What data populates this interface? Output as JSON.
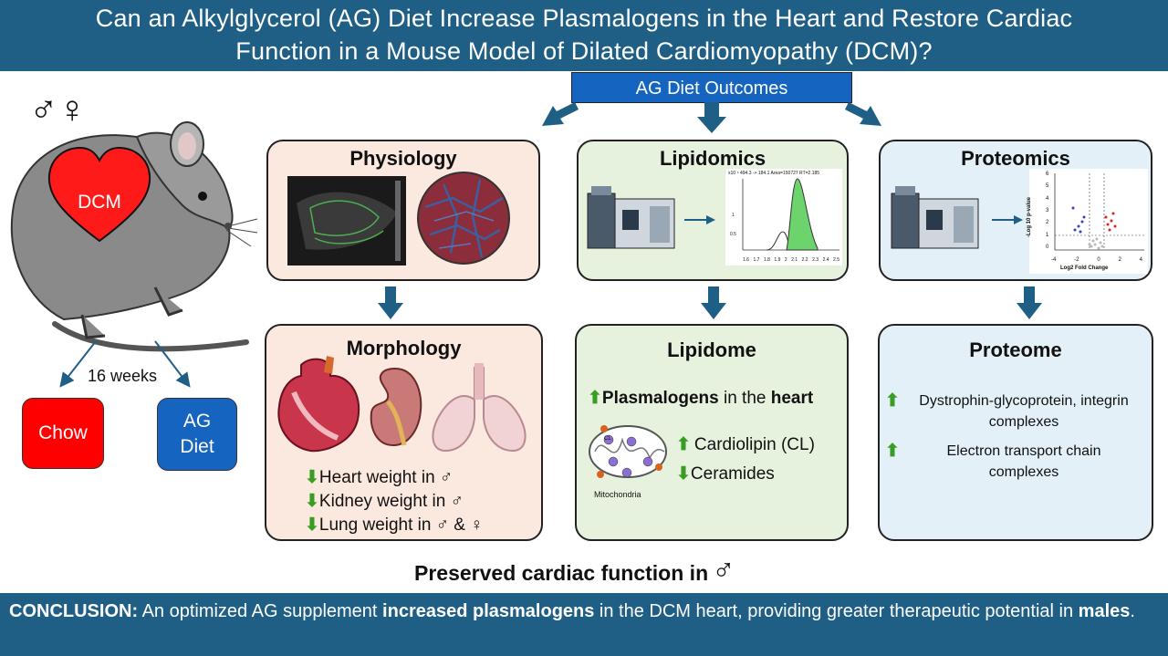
{
  "title": {
    "line1": "Can an Alkylglycerol (AG) Diet Increase Plasmalogens in the Heart and Restore Cardiac",
    "line2": "Function in a Mouse Model of Dilated Cardiomyopathy (DCM)?"
  },
  "sex_symbols": "♂♀",
  "mouse": {
    "heart_label": "DCM"
  },
  "duration": "16 weeks",
  "groups": {
    "chow": "Chow",
    "ag_line1": "AG",
    "ag_line2": "Diet"
  },
  "outcomes_label": "AG Diet Outcomes",
  "top_panels": {
    "physiology": "Physiology",
    "lipidomics": "Lipidomics",
    "proteomics": "Proteomics"
  },
  "chromatogram": {
    "header": "x10 ⁴ 494.3 -> 184.1 Area=150727 RT=2.185",
    "x_ticks": [
      "1.6",
      "1.7",
      "1.8",
      "1.9",
      "2",
      "2.1",
      "2.2",
      "2.3",
      "2.4",
      "2.5"
    ],
    "y_ticks": [
      "1",
      "0.5"
    ]
  },
  "volcano": {
    "ylabel": "-Log 10 p-value",
    "xlabel": "Log2 Fold Change",
    "x_ticks": [
      "-4",
      "-2",
      "0",
      "2",
      "4"
    ],
    "y_ticks": [
      "0",
      "1",
      "2",
      "3",
      "4",
      "5",
      "6"
    ]
  },
  "bottom_panels": {
    "morphology": {
      "title": "Morphology",
      "items": [
        {
          "arrow": "⬇",
          "text": "Heart weight in ♂"
        },
        {
          "arrow": "⬇",
          "text": "Kidney weight in ♂"
        },
        {
          "arrow": "⬇",
          "text": "Lung weight in ♂ & ♀"
        }
      ]
    },
    "lipidome": {
      "title": "Lipidome",
      "main_arrow": "⬆",
      "main_bold": "Plasmalogens",
      "main_mid": " in the ",
      "main_bold2": "heart",
      "mito_label": "Mitochondria",
      "cl_label": "CL",
      "items": [
        {
          "arrow": "⬆",
          "text": "Cardiolipin (CL)"
        },
        {
          "arrow": "⬇",
          "text": "Ceramides"
        }
      ]
    },
    "proteome": {
      "title": "Proteome",
      "items": [
        {
          "arrow": "⬆",
          "line1": "Dystrophin-glycoprotein, integrin",
          "line2": "complexes"
        },
        {
          "arrow": "⬆",
          "line1": "Electron transport chain",
          "line2": "complexes"
        }
      ]
    }
  },
  "preserved": {
    "text": "Preserved cardiac function in",
    "symbol": "♂"
  },
  "conclusion": {
    "label": "CONCLUSION:",
    "part1": " An optimized AG supplement ",
    "bold1": "increased plasmalogens",
    "part2": " in the DCM heart, providing greater therapeutic potential in ",
    "bold2": "males",
    "part3": "."
  },
  "colors": {
    "title_bg": "#1f5f86",
    "chow": "#ff0000",
    "ag_diet": "#1565c0",
    "arrow": "#1f5f86",
    "physiology_bg": "#fbe8de",
    "lipidomics_bg": "#e6f2de",
    "proteomics_bg": "#e4f0f8"
  }
}
